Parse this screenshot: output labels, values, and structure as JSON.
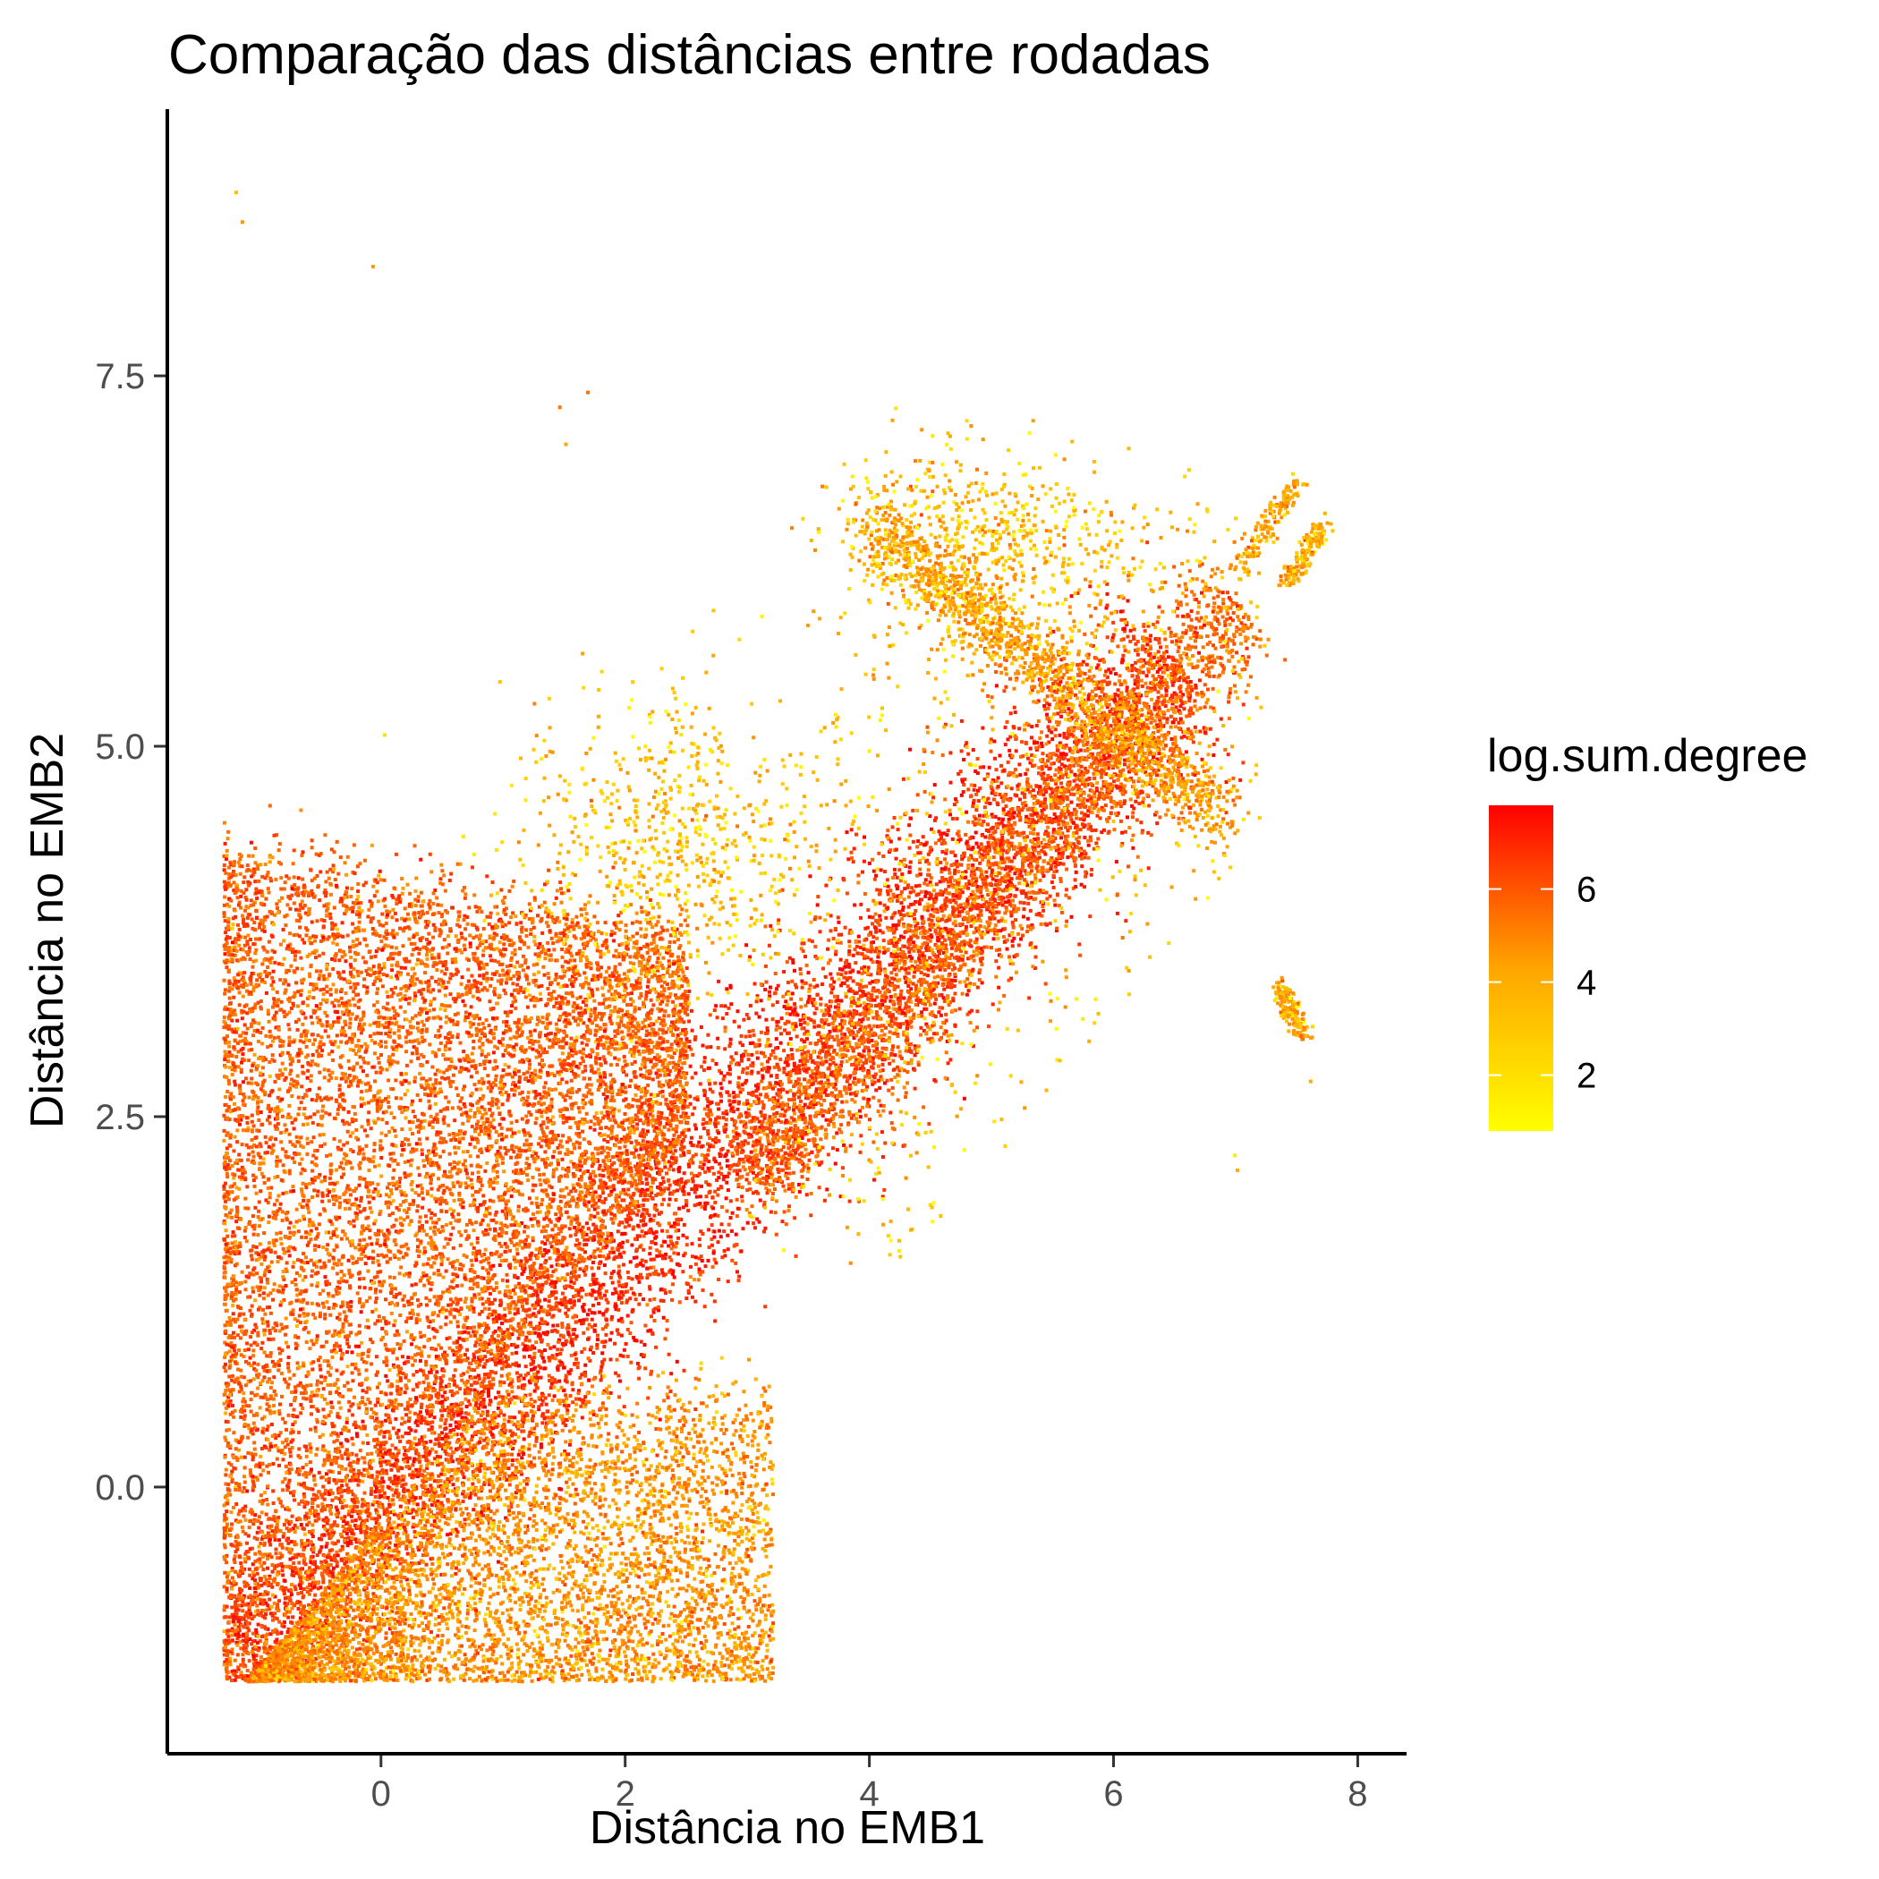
{
  "chart_data": {
    "type": "scatter",
    "title": "Comparação das distâncias entre rodadas",
    "xlabel": "Distância no EMB1",
    "ylabel": "Distância no EMB2",
    "xlim": [
      -1.75,
      8.4
    ],
    "ylim": [
      -1.8,
      9.3
    ],
    "x_ticks": [
      0,
      2,
      4,
      6,
      8
    ],
    "x_tick_labels": [
      "0",
      "2",
      "4",
      "6",
      "8"
    ],
    "y_ticks": [
      0.0,
      2.5,
      5.0,
      7.5
    ],
    "y_tick_labels": [
      "0.0",
      "2.5",
      "5.0",
      "7.5"
    ],
    "grid": false,
    "legend": {
      "title": "log.sum.degree",
      "placement": "right",
      "type": "colorbar",
      "range": [
        0.8,
        7.8
      ],
      "ticks": [
        2,
        4,
        6
      ],
      "tick_labels": [
        "2",
        "4",
        "6"
      ],
      "color_low": "#FFFF00",
      "color_high": "#FF0000"
    },
    "clusters": [
      {
        "kind": "diagonal_band",
        "x_from": -1.3,
        "x_to": 6.5,
        "y_from": -1.3,
        "y_to": 5.6,
        "spread": 0.35,
        "level": 6.6
      },
      {
        "kind": "parallel_band",
        "x_from": 3.0,
        "x_to": 7.0,
        "y_from": 2.1,
        "y_to": 6.0,
        "spread": 0.22,
        "level": 5.0
      },
      {
        "kind": "upper_wedge",
        "x_from": -1.3,
        "x_to": 2.5,
        "y_from": -1.3,
        "y_to": 4.3,
        "level": 5.2
      },
      {
        "kind": "lower_wedge",
        "x_from": -1.3,
        "x_to": 3.2,
        "y_from": -1.3,
        "y_to": 0.6,
        "level": 3.8
      },
      {
        "kind": "cross_arm",
        "x_from": 4.0,
        "x_to": 6.9,
        "y_from": 6.5,
        "y_to": 4.5,
        "spread": 0.12,
        "level": 3.5
      },
      {
        "kind": "sparse_cloud",
        "x_center": 2.3,
        "y_center": 4.3,
        "sx": 0.6,
        "sy": 0.55,
        "level": 2.5
      },
      {
        "kind": "sparse_cloud",
        "x_center": 4.9,
        "y_center": 6.3,
        "sx": 0.6,
        "sy": 0.35,
        "level": 2.6
      },
      {
        "kind": "small_band",
        "x_from": 7.0,
        "x_to": 7.5,
        "y_from": 6.2,
        "y_to": 6.8,
        "spread": 0.05,
        "level": 3.2
      },
      {
        "kind": "small_band",
        "x_from": 7.4,
        "x_to": 7.7,
        "y_from": 6.1,
        "y_to": 6.5,
        "spread": 0.04,
        "level": 3.0
      },
      {
        "kind": "small_band",
        "x_from": 7.35,
        "x_to": 7.55,
        "y_from": 3.4,
        "y_to": 3.05,
        "spread": 0.04,
        "level": 3.2
      }
    ],
    "outliers": [
      {
        "x": -1.2,
        "y": 8.75
      },
      {
        "x": -1.15,
        "y": 8.55
      },
      {
        "x": -0.08,
        "y": 8.25
      },
      {
        "x": 1.45,
        "y": 7.3
      },
      {
        "x": 1.68,
        "y": 7.4
      },
      {
        "x": 1.5,
        "y": 7.05
      },
      {
        "x": 7.0,
        "y": 2.15
      },
      {
        "x": 6.98,
        "y": 2.25
      },
      {
        "x": 7.6,
        "y": 2.75
      }
    ]
  }
}
